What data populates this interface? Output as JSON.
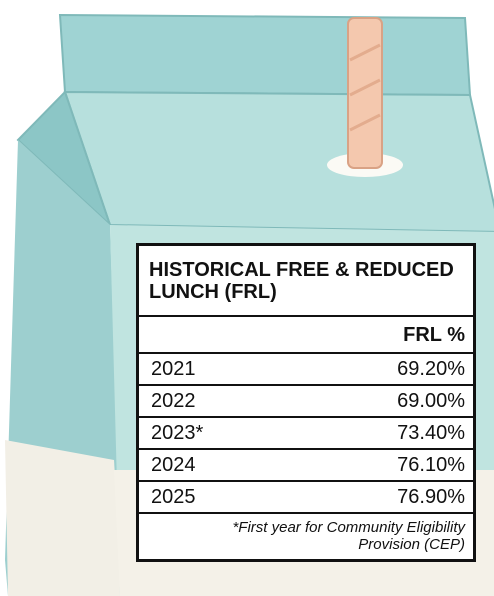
{
  "table": {
    "title": "HISTORICAL FREE & REDUCED LUNCH (FRL)",
    "header": "FRL %",
    "rows": [
      [
        "2021",
        "69.20%"
      ],
      [
        "2022",
        "69.00%"
      ],
      [
        "2023*",
        "73.40%"
      ],
      [
        "2024",
        "76.10%"
      ],
      [
        "2025",
        "76.90%"
      ]
    ],
    "footnote": "*First year for Community Eligibility Provision (CEP)"
  }
}
